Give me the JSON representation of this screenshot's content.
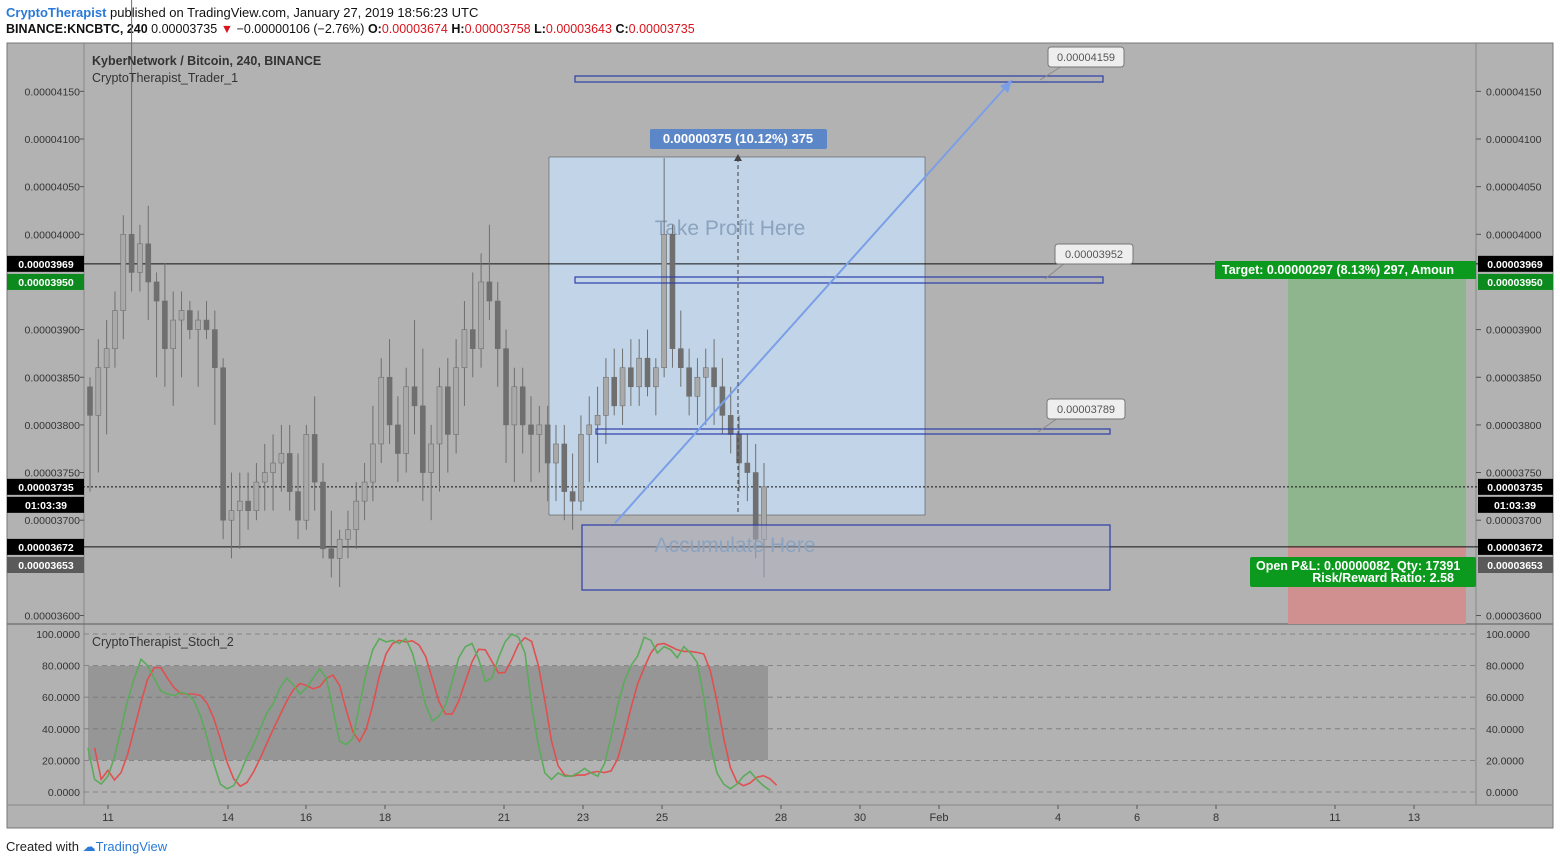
{
  "header": {
    "author": "CryptoTherapist",
    "published": "published on TradingView.com, January 27, 2019 18:56:23 UTC",
    "symbol": "BINANCE:KNCBTC, 240",
    "last": "0.00003735",
    "change": "−0.00000106 (−2.76%)",
    "o_label": "O:",
    "o": "0.00003674",
    "h_label": "H:",
    "h": "0.00003758",
    "l_label": "L:",
    "l": "0.00003643",
    "c_label": "C:",
    "c": "0.00003735"
  },
  "footer": {
    "created": "Created with",
    "brand": "TradingView"
  },
  "colors": {
    "background": "#b2b2b2",
    "candle": "#7d7d7d",
    "box": "#c2d5e8",
    "trendline": "#7b9fe6",
    "zone_border": "#2c3ea8",
    "target": "#8fb58f",
    "stop": "#d09090",
    "stoch_k": "#5bab5b",
    "stoch_d": "#e05050"
  },
  "chart_data": [
    {
      "type": "candlestick",
      "title": "KyberNetwork / Bitcoin, 240, BINANCE",
      "indicator": "CryptoTherapist_Trader_1",
      "x_tick_labels": [
        "11",
        "14",
        "16",
        "18",
        "21",
        "23",
        "25",
        "28",
        "30",
        "Feb",
        "4",
        "6",
        "8",
        "11",
        "13"
      ],
      "y_tick_labels": [
        "0.00004150",
        "0.00004100",
        "0.00004050",
        "0.00004000",
        "0.00003900",
        "0.00003850",
        "0.00003800",
        "0.00003750",
        "0.00003700",
        "0.00003600"
      ],
      "ylim": [
        3.58e-05,
        4.2e-05
      ],
      "grid": false,
      "price_labels": [
        {
          "value": "0.00003969",
          "color": "#000000"
        },
        {
          "value": "0.00003950",
          "color": "#0c8a1e"
        },
        {
          "value": "0.00003735",
          "color": "#000000"
        },
        {
          "value": "01:03:39",
          "color": "#000000"
        },
        {
          "value": "0.00003672",
          "color": "#000000"
        },
        {
          "value": "0.00003653",
          "color": "#5a5a5a"
        }
      ],
      "horizontal_lines": [
        3.969e-05,
        3.735e-05,
        3.672e-05
      ],
      "resistance_levels": [
        "0.00004159",
        "0.00003952",
        "0.00003789"
      ],
      "measure_label": "0.00000375 (10.12%) 375",
      "box_text": "Take Profit Here",
      "zone_text": "Accumulate Here",
      "target_label": "Target: 0.00000297 (8.13%) 297, Amoun",
      "pnl_line1": "Open P&L: 0.00000082, Qty: 17391",
      "pnl_line2": "Risk/Reward Ratio: 2.58",
      "ohlc": [
        [
          3.84,
          3.85,
          3.73,
          3.81
        ],
        [
          3.81,
          3.89,
          3.75,
          3.86
        ],
        [
          3.86,
          3.91,
          3.79,
          3.88
        ],
        [
          3.88,
          3.94,
          3.86,
          3.92
        ],
        [
          3.92,
          4.02,
          3.89,
          4.0
        ],
        [
          4.0,
          4.3,
          3.94,
          3.96
        ],
        [
          3.96,
          4.01,
          3.94,
          3.99
        ],
        [
          3.99,
          4.03,
          3.91,
          3.95
        ],
        [
          3.95,
          3.96,
          3.85,
          3.93
        ],
        [
          3.93,
          3.97,
          3.84,
          3.88
        ],
        [
          3.88,
          3.94,
          3.82,
          3.91
        ],
        [
          3.91,
          3.94,
          3.85,
          3.92
        ],
        [
          3.92,
          3.93,
          3.89,
          3.9
        ],
        [
          3.9,
          3.92,
          3.84,
          3.91
        ],
        [
          3.91,
          3.93,
          3.89,
          3.9
        ],
        [
          3.9,
          3.92,
          3.8,
          3.86
        ],
        [
          3.86,
          3.87,
          3.68,
          3.7
        ],
        [
          3.7,
          3.75,
          3.66,
          3.71
        ],
        [
          3.71,
          3.75,
          3.67,
          3.72
        ],
        [
          3.72,
          3.75,
          3.69,
          3.71
        ],
        [
          3.71,
          3.76,
          3.7,
          3.74
        ],
        [
          3.74,
          3.78,
          3.71,
          3.75
        ],
        [
          3.75,
          3.79,
          3.71,
          3.76
        ],
        [
          3.76,
          3.8,
          3.73,
          3.77
        ],
        [
          3.77,
          3.8,
          3.71,
          3.73
        ],
        [
          3.73,
          3.77,
          3.68,
          3.7
        ],
        [
          3.7,
          3.8,
          3.69,
          3.79
        ],
        [
          3.79,
          3.83,
          3.71,
          3.74
        ],
        [
          3.74,
          3.76,
          3.66,
          3.67
        ],
        [
          3.67,
          3.71,
          3.64,
          3.66
        ],
        [
          3.66,
          3.69,
          3.63,
          3.68
        ],
        [
          3.68,
          3.71,
          3.66,
          3.69
        ],
        [
          3.69,
          3.74,
          3.67,
          3.72
        ],
        [
          3.72,
          3.76,
          3.7,
          3.74
        ],
        [
          3.74,
          3.82,
          3.72,
          3.78
        ],
        [
          3.78,
          3.87,
          3.76,
          3.85
        ],
        [
          3.85,
          3.89,
          3.78,
          3.8
        ],
        [
          3.8,
          3.83,
          3.74,
          3.77
        ],
        [
          3.77,
          3.86,
          3.75,
          3.84
        ],
        [
          3.84,
          3.91,
          3.79,
          3.82
        ],
        [
          3.82,
          3.88,
          3.72,
          3.75
        ],
        [
          3.75,
          3.8,
          3.7,
          3.78
        ],
        [
          3.78,
          3.86,
          3.73,
          3.84
        ],
        [
          3.84,
          3.87,
          3.75,
          3.79
        ],
        [
          3.79,
          3.89,
          3.77,
          3.86
        ],
        [
          3.86,
          3.93,
          3.82,
          3.9
        ],
        [
          3.9,
          3.96,
          3.85,
          3.88
        ],
        [
          3.88,
          3.98,
          3.86,
          3.95
        ],
        [
          3.95,
          4.01,
          3.91,
          3.93
        ],
        [
          3.93,
          3.95,
          3.84,
          3.88
        ],
        [
          3.88,
          3.9,
          3.76,
          3.8
        ],
        [
          3.8,
          3.86,
          3.74,
          3.84
        ],
        [
          3.84,
          3.86,
          3.77,
          3.8
        ],
        [
          3.8,
          3.83,
          3.74,
          3.79
        ],
        [
          3.79,
          3.82,
          3.75,
          3.8
        ],
        [
          3.8,
          3.82,
          3.72,
          3.76
        ],
        [
          3.76,
          3.8,
          3.72,
          3.78
        ],
        [
          3.78,
          3.8,
          3.7,
          3.73
        ],
        [
          3.73,
          3.77,
          3.69,
          3.72
        ],
        [
          3.72,
          3.81,
          3.71,
          3.79
        ],
        [
          3.79,
          3.83,
          3.74,
          3.8
        ],
        [
          3.8,
          3.84,
          3.76,
          3.81
        ],
        [
          3.81,
          3.87,
          3.78,
          3.85
        ],
        [
          3.85,
          3.88,
          3.81,
          3.82
        ],
        [
          3.82,
          3.88,
          3.8,
          3.86
        ],
        [
          3.86,
          3.89,
          3.82,
          3.84
        ],
        [
          3.84,
          3.89,
          3.82,
          3.87
        ],
        [
          3.87,
          3.9,
          3.83,
          3.84
        ],
        [
          3.84,
          3.87,
          3.81,
          3.86
        ],
        [
          3.86,
          4.08,
          3.85,
          4.0
        ],
        [
          4.0,
          4.01,
          3.86,
          3.88
        ],
        [
          3.88,
          3.92,
          3.84,
          3.86
        ],
        [
          3.86,
          3.88,
          3.81,
          3.83
        ],
        [
          3.83,
          3.87,
          3.8,
          3.85
        ],
        [
          3.85,
          3.88,
          3.8,
          3.86
        ],
        [
          3.86,
          3.89,
          3.8,
          3.84
        ],
        [
          3.84,
          3.87,
          3.79,
          3.81
        ],
        [
          3.81,
          3.84,
          3.77,
          3.79
        ],
        [
          3.79,
          3.81,
          3.73,
          3.76
        ],
        [
          3.76,
          3.79,
          3.72,
          3.75
        ],
        [
          3.75,
          3.78,
          3.66,
          3.68
        ],
        [
          3.68,
          3.76,
          3.64,
          3.735
        ]
      ],
      "stochastic": {
        "name": "CryptoTherapist_Stoch_2",
        "y_tick_labels": [
          "100.0000",
          "80.0000",
          "60.0000",
          "40.0000",
          "20.0000",
          "0.0000"
        ],
        "band": [
          20,
          80
        ],
        "k": [
          28,
          8,
          5,
          10,
          22,
          40,
          58,
          72,
          84,
          80,
          72,
          64,
          62,
          61,
          63,
          62,
          58,
          48,
          34,
          18,
          5,
          2,
          4,
          12,
          22,
          30,
          40,
          50,
          56,
          66,
          72,
          68,
          62,
          66,
          72,
          78,
          72,
          52,
          32,
          30,
          34,
          55,
          75,
          90,
          97,
          95,
          96,
          94,
          97,
          88,
          72,
          55,
          45,
          48,
          55,
          70,
          85,
          92,
          94,
          84,
          70,
          72,
          85,
          95,
          100,
          98,
          88,
          55,
          30,
          12,
          8,
          12,
          10,
          10,
          12,
          15,
          12,
          10,
          18,
          35,
          55,
          70,
          80,
          86,
          98,
          96,
          88,
          92,
          90,
          85,
          92,
          88,
          82,
          60,
          30,
          12,
          5,
          2,
          5,
          10,
          13,
          8,
          4,
          1
        ]
      }
    }
  ]
}
